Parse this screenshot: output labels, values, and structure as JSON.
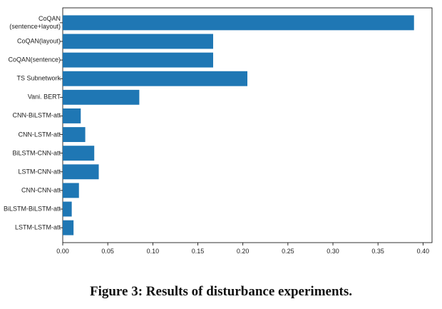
{
  "chart_data": {
    "type": "barh",
    "categories": [
      "CoQAN\n(sentence+layout)",
      "CoQAN(layout)",
      "CoQAN(sentence)",
      "TS Subnetwork",
      "Vani. BERT",
      "CNN-BiLSTM-att",
      "CNN-LSTM-att",
      "BiLSTM-CNN-att",
      "LSTM-CNN-att",
      "CNN-CNN-att",
      "BiLSTM-BiLSTM-att",
      "LSTM-LSTM-att"
    ],
    "values": [
      0.39,
      0.167,
      0.167,
      0.205,
      0.085,
      0.02,
      0.025,
      0.035,
      0.04,
      0.018,
      0.01,
      0.012
    ],
    "color": "#1f77b4",
    "xlim": [
      0,
      0.41
    ],
    "xticks": [
      {
        "value": 0,
        "label": "0.00"
      },
      {
        "value": 0.05,
        "label": "0.05"
      },
      {
        "value": 0.1,
        "label": "0.10"
      },
      {
        "value": 0.15,
        "label": "0.15"
      },
      {
        "value": 0.2,
        "label": "0.20"
      },
      {
        "value": 0.25,
        "label": "0.25"
      },
      {
        "value": 0.3,
        "label": "0.30"
      },
      {
        "value": 0.35,
        "label": "0.35"
      },
      {
        "value": 0.4,
        "label": "0.40"
      }
    ]
  },
  "caption": "Figure 3: Results of disturbance experiments."
}
